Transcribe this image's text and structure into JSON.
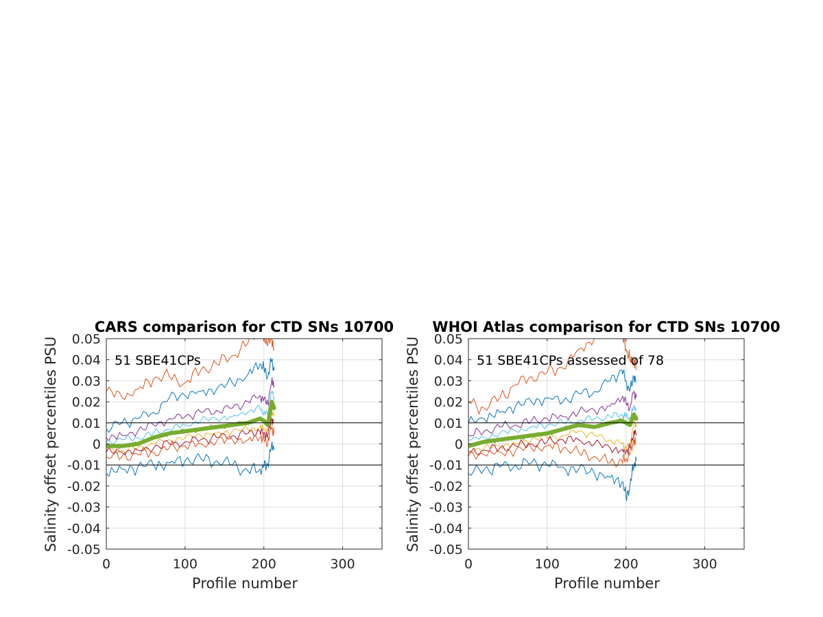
{
  "chart_data": [
    {
      "type": "line",
      "title": "CARS comparison for CTD SNs 10700",
      "xlabel": "Profile number",
      "ylabel": "Salinity offset percentiles PSU",
      "annotation": "51 SBE41CPs",
      "xlim": [
        0,
        350
      ],
      "ylim": [
        -0.05,
        0.05
      ],
      "xticks": [
        "0",
        "100",
        "200",
        "300"
      ],
      "yticks": [
        "-0.05",
        "-0.04",
        "-0.03",
        "-0.02",
        "-0.01",
        "0",
        "0.01",
        "0.02",
        "0.03",
        "0.04",
        "0.05"
      ],
      "grid": true,
      "reference_lines": [
        0.01,
        -0.01
      ],
      "x": [
        0,
        20,
        40,
        60,
        80,
        100,
        120,
        140,
        160,
        180,
        195,
        200,
        205,
        210,
        213
      ],
      "series": [
        {
          "color": "#D95319",
          "values": [
            0.025,
            0.022,
            0.026,
            0.031,
            0.032,
            0.029,
            0.035,
            0.038,
            0.042,
            0.048,
            0.055,
            0.052,
            0.047,
            0.05,
            0.045
          ]
        },
        {
          "color": "#0072BD",
          "values": [
            0.007,
            0.01,
            0.012,
            0.015,
            0.022,
            0.023,
            0.025,
            0.026,
            0.029,
            0.033,
            0.038,
            0.036,
            0.032,
            0.04,
            0.035
          ]
        },
        {
          "color": "#7E2F8E",
          "values": [
            0.003,
            0.004,
            0.006,
            0.009,
            0.012,
            0.013,
            0.015,
            0.016,
            0.017,
            0.02,
            0.023,
            0.021,
            0.019,
            0.03,
            0.028
          ]
        },
        {
          "color": "#4DBEEE",
          "values": [
            0.001,
            0.002,
            0.003,
            0.005,
            0.007,
            0.009,
            0.011,
            0.012,
            0.013,
            0.015,
            0.017,
            0.015,
            0.014,
            0.025,
            0.022
          ]
        },
        {
          "color": "#77AC30",
          "values": [
            -0.001,
            -0.001,
            0.0,
            0.003,
            0.005,
            0.006,
            0.007,
            0.008,
            0.009,
            0.01,
            0.012,
            0.011,
            0.009,
            0.02,
            0.017
          ]
        },
        {
          "color": "#EDB120",
          "values": [
            -0.003,
            -0.003,
            -0.002,
            0.0,
            0.002,
            0.003,
            0.004,
            0.005,
            0.006,
            0.007,
            0.008,
            0.007,
            0.006,
            0.015,
            0.013
          ]
        },
        {
          "color": "#A2142F",
          "values": [
            -0.004,
            -0.004,
            -0.003,
            -0.002,
            0.0,
            0.001,
            0.002,
            0.003,
            0.004,
            0.005,
            0.006,
            0.005,
            0.004,
            0.012,
            0.01
          ]
        },
        {
          "color": "#D95319",
          "values": [
            -0.006,
            -0.006,
            -0.005,
            -0.004,
            -0.002,
            -0.001,
            0.0,
            0.001,
            0.002,
            0.002,
            0.003,
            0.002,
            0.001,
            0.008,
            0.005
          ]
        },
        {
          "color": "#0072BD",
          "values": [
            -0.014,
            -0.012,
            -0.011,
            -0.01,
            -0.009,
            -0.008,
            -0.007,
            -0.008,
            -0.01,
            -0.013,
            -0.012,
            -0.011,
            -0.01,
            0.0,
            -0.002
          ]
        }
      ],
      "median_series_color": "#77AC30"
    },
    {
      "type": "line",
      "title": "WHOI Atlas comparison for CTD SNs 10700",
      "xlabel": "Profile number",
      "ylabel": "Salinity offset percentiles PSU",
      "annotation": "51 SBE41CPs assessed of 78",
      "xlim": [
        0,
        350
      ],
      "ylim": [
        -0.05,
        0.05
      ],
      "xticks": [
        "0",
        "100",
        "200",
        "300"
      ],
      "yticks": [
        "-0.05",
        "-0.04",
        "-0.03",
        "-0.02",
        "-0.01",
        "0",
        "0.01",
        "0.02",
        "0.03",
        "0.04",
        "0.05"
      ],
      "grid": true,
      "reference_lines": [
        0.01,
        -0.01
      ],
      "x": [
        0,
        20,
        40,
        60,
        80,
        100,
        120,
        140,
        160,
        180,
        195,
        200,
        205,
        210,
        213
      ],
      "series": [
        {
          "color": "#D95319",
          "values": [
            0.02,
            0.017,
            0.022,
            0.028,
            0.032,
            0.034,
            0.036,
            0.045,
            0.05,
            0.055,
            0.052,
            0.045,
            0.04,
            0.04,
            0.035
          ]
        },
        {
          "color": "#0072BD",
          "values": [
            0.01,
            0.012,
            0.015,
            0.018,
            0.02,
            0.022,
            0.02,
            0.024,
            0.025,
            0.03,
            0.035,
            0.03,
            0.025,
            0.032,
            0.03
          ]
        },
        {
          "color": "#7E2F8E",
          "values": [
            0.004,
            0.006,
            0.008,
            0.009,
            0.011,
            0.012,
            0.013,
            0.015,
            0.016,
            0.018,
            0.022,
            0.02,
            0.017,
            0.025,
            0.022
          ]
        },
        {
          "color": "#4DBEEE",
          "values": [
            0.002,
            0.003,
            0.005,
            0.006,
            0.008,
            0.009,
            0.01,
            0.011,
            0.012,
            0.013,
            0.014,
            0.013,
            0.012,
            0.018,
            0.016
          ]
        },
        {
          "color": "#77AC30",
          "values": [
            -0.001,
            0.001,
            0.002,
            0.003,
            0.004,
            0.005,
            0.007,
            0.009,
            0.008,
            0.01,
            0.011,
            0.01,
            0.009,
            0.014,
            0.012
          ]
        },
        {
          "color": "#EDB120",
          "values": [
            -0.003,
            -0.002,
            -0.001,
            0.0,
            0.002,
            0.003,
            0.004,
            0.006,
            0.004,
            0.002,
            0.0,
            -0.002,
            0.0,
            0.01,
            0.008
          ]
        },
        {
          "color": "#A2142F",
          "values": [
            -0.004,
            -0.003,
            -0.002,
            -0.001,
            0.0,
            0.001,
            0.002,
            0.002,
            0.0,
            -0.002,
            -0.003,
            -0.004,
            -0.002,
            0.006,
            0.004
          ]
        },
        {
          "color": "#D95319",
          "values": [
            -0.006,
            -0.005,
            -0.004,
            -0.003,
            -0.002,
            -0.001,
            -0.002,
            -0.004,
            -0.006,
            -0.009,
            -0.008,
            -0.007,
            -0.005,
            0.002,
            0.0
          ]
        },
        {
          "color": "#0072BD",
          "values": [
            -0.014,
            -0.012,
            -0.011,
            -0.01,
            -0.009,
            -0.01,
            -0.011,
            -0.012,
            -0.014,
            -0.016,
            -0.018,
            -0.025,
            -0.02,
            -0.01,
            -0.008
          ]
        }
      ],
      "median_series_color": "#77AC30"
    }
  ]
}
